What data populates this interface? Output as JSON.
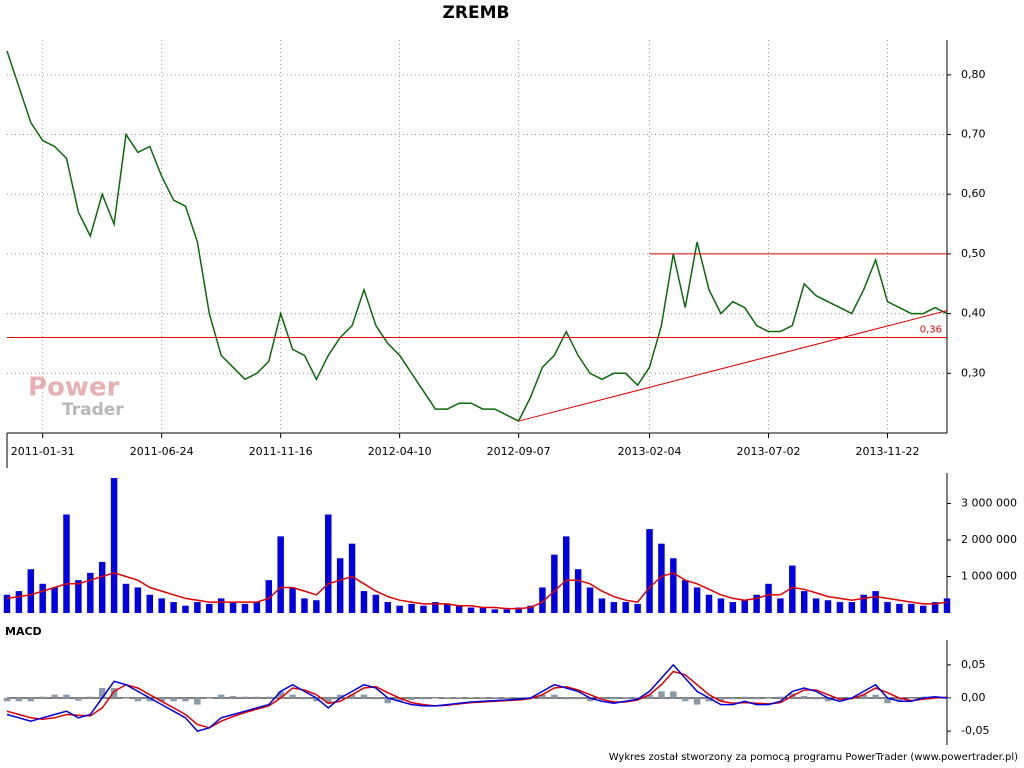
{
  "chart_data": [
    {
      "type": "line",
      "title": "ZREMB",
      "xlim": [
        0,
        79
      ],
      "xticks": [
        {
          "value": 3,
          "label": "2011-01-31"
        },
        {
          "value": 13,
          "label": "2011-06-24"
        },
        {
          "value": 23,
          "label": "2011-11-16"
        },
        {
          "value": 33,
          "label": "2012-04-10"
        },
        {
          "value": 43,
          "label": "2012-09-07"
        },
        {
          "value": 54,
          "label": "2013-02-04"
        },
        {
          "value": 64,
          "label": "2013-07-02"
        },
        {
          "value": 74,
          "label": "2013-11-22"
        }
      ],
      "ylim": [
        0.2,
        0.85
      ],
      "yticks": [
        {
          "value": 0.3,
          "label": "0,30"
        },
        {
          "value": 0.4,
          "label": "0,40"
        },
        {
          "value": 0.5,
          "label": "0,50"
        },
        {
          "value": 0.6,
          "label": "0,60"
        },
        {
          "value": 0.7,
          "label": "0,70"
        },
        {
          "value": 0.8,
          "label": "0,80"
        }
      ],
      "grid": true,
      "series": [
        {
          "color": "#0a6a0a",
          "values": [
            0.84,
            0.78,
            0.72,
            0.69,
            0.68,
            0.66,
            0.57,
            0.53,
            0.6,
            0.55,
            0.7,
            0.67,
            0.68,
            0.63,
            0.59,
            0.58,
            0.52,
            0.4,
            0.33,
            0.31,
            0.29,
            0.3,
            0.32,
            0.4,
            0.34,
            0.33,
            0.29,
            0.33,
            0.36,
            0.38,
            0.44,
            0.38,
            0.35,
            0.33,
            0.3,
            0.27,
            0.24,
            0.24,
            0.25,
            0.25,
            0.24,
            0.24,
            0.23,
            0.22,
            0.26,
            0.31,
            0.33,
            0.37,
            0.33,
            0.3,
            0.29,
            0.3,
            0.3,
            0.28,
            0.31,
            0.38,
            0.5,
            0.41,
            0.52,
            0.44,
            0.4,
            0.42,
            0.41,
            0.38,
            0.37,
            0.37,
            0.38,
            0.45,
            0.43,
            0.42,
            0.41,
            0.4,
            0.44,
            0.49,
            0.42,
            0.41,
            0.4,
            0.4,
            0.41,
            0.4
          ]
        }
      ],
      "reference_lines": [
        {
          "y": 0.5,
          "x_start": 54,
          "color": "#e00000"
        },
        {
          "y": 0.36,
          "color": "#e00000",
          "label": "0,36"
        }
      ],
      "trend_line": {
        "x": [
          43,
          79
        ],
        "y": [
          0.22,
          0.405
        ],
        "color": "#e00000"
      },
      "watermark": [
        "Power",
        "Trader"
      ]
    },
    {
      "type": "bar",
      "xlim": [
        0,
        79
      ],
      "ylim": [
        0,
        3700000
      ],
      "yticks": [
        {
          "value": 1000000,
          "label": "1 000 000"
        },
        {
          "value": 2000000,
          "label": "2 000 000"
        },
        {
          "value": 3000000,
          "label": "3 000 000"
        }
      ],
      "series": [
        {
          "style": "bar",
          "color": "#0000e0",
          "values": [
            500000,
            600000,
            1200000,
            800000,
            700000,
            2700000,
            900000,
            1100000,
            1400000,
            3700000,
            800000,
            700000,
            500000,
            400000,
            300000,
            200000,
            300000,
            250000,
            400000,
            300000,
            250000,
            300000,
            900000,
            2100000,
            700000,
            400000,
            350000,
            2700000,
            1500000,
            1900000,
            600000,
            500000,
            300000,
            200000,
            250000,
            200000,
            300000,
            250000,
            200000,
            150000,
            150000,
            100000,
            100000,
            150000,
            200000,
            700000,
            1600000,
            2100000,
            1200000,
            700000,
            400000,
            300000,
            300000,
            250000,
            2300000,
            1900000,
            1500000,
            900000,
            700000,
            500000,
            400000,
            300000,
            350000,
            500000,
            800000,
            400000,
            1300000,
            600000,
            400000,
            350000,
            300000,
            300000,
            500000,
            600000,
            300000,
            250000,
            250000,
            200000,
            300000,
            400000
          ]
        },
        {
          "style": "line",
          "color": "#e00000",
          "values": [
            400000,
            450000,
            500000,
            600000,
            700000,
            800000,
            800000,
            900000,
            1000000,
            1100000,
            1000000,
            900000,
            700000,
            600000,
            500000,
            400000,
            350000,
            300000,
            300000,
            300000,
            300000,
            300000,
            400000,
            700000,
            700000,
            600000,
            500000,
            800000,
            900000,
            1000000,
            800000,
            600000,
            450000,
            350000,
            300000,
            250000,
            250000,
            250000,
            200000,
            200000,
            150000,
            150000,
            120000,
            120000,
            150000,
            300000,
            600000,
            900000,
            900000,
            800000,
            600000,
            450000,
            350000,
            300000,
            700000,
            1000000,
            1100000,
            900000,
            800000,
            650000,
            500000,
            400000,
            350000,
            400000,
            500000,
            500000,
            700000,
            650000,
            550000,
            450000,
            400000,
            350000,
            400000,
            450000,
            400000,
            350000,
            300000,
            250000,
            250000,
            300000
          ]
        }
      ]
    },
    {
      "type": "macd",
      "title": "MACD",
      "xlim": [
        0,
        79
      ],
      "ylim": [
        -0.071,
        0.08
      ],
      "yticks": [
        {
          "value": -0.05,
          "label": "-0,05"
        },
        {
          "value": 0,
          "label": "0,00"
        },
        {
          "value": 0.05,
          "label": "0,05"
        }
      ],
      "series": [
        {
          "style": "bar",
          "color": "#8a9aa8",
          "values": [
            -0.005,
            -0.005,
            -0.005,
            0.002,
            0.005,
            0.005,
            -0.004,
            0.002,
            0.015,
            0.015,
            0,
            -0.005,
            -0.005,
            -0.005,
            -0.005,
            -0.005,
            -0.01,
            0,
            0.005,
            0.003,
            0.002,
            0.002,
            0.002,
            0.01,
            0.005,
            -0.002,
            -0.005,
            -0.007,
            0.005,
            0.005,
            0.005,
            -0.002,
            -0.008,
            -0.005,
            -0.003,
            -0.002,
            0,
            0.001,
            0.001,
            0.001,
            0.001,
            0.001,
            0.001,
            0.001,
            0.001,
            0.005,
            0.005,
            -0.002,
            -0.002,
            -0.005,
            -0.003,
            -0.002,
            0.001,
            0.001,
            0.005,
            0.01,
            0.01,
            -0.005,
            -0.01,
            -0.005,
            -0.005,
            -0.002,
            0.002,
            -0.002,
            -0.001,
            0.002,
            0.007,
            0.003,
            -0.002,
            -0.005,
            -0.003,
            0.001,
            0.005,
            0.005,
            -0.008,
            -0.005,
            -0.001,
            0.002,
            0.002,
            -0.001
          ]
        },
        {
          "style": "line",
          "color": "#e00000",
          "values": [
            -0.02,
            -0.025,
            -0.03,
            -0.032,
            -0.03,
            -0.025,
            -0.026,
            -0.027,
            -0.015,
            0.01,
            0.02,
            0.015,
            0.005,
            -0.005,
            -0.015,
            -0.025,
            -0.04,
            -0.045,
            -0.035,
            -0.028,
            -0.022,
            -0.017,
            -0.012,
            0,
            0.015,
            0.012,
            0.005,
            -0.008,
            -0.005,
            0.005,
            0.015,
            0.017,
            0.008,
            0,
            -0.007,
            -0.01,
            -0.012,
            -0.011,
            -0.009,
            -0.007,
            -0.006,
            -0.005,
            -0.004,
            -0.003,
            -0.001,
            0.005,
            0.015,
            0.017,
            0.012,
            0.005,
            -0.002,
            -0.006,
            -0.006,
            -0.003,
            0.005,
            0.02,
            0.04,
            0.035,
            0.02,
            0.005,
            -0.005,
            -0.008,
            -0.007,
            -0.008,
            -0.009,
            -0.007,
            0.003,
            0.012,
            0.012,
            0.005,
            -0.002,
            -0.001,
            0.005,
            0.015,
            0.008,
            0,
            -0.004,
            -0.002,
            0,
            0.001
          ]
        },
        {
          "style": "line",
          "color": "#0000e0",
          "values": [
            -0.025,
            -0.03,
            -0.035,
            -0.03,
            -0.025,
            -0.02,
            -0.03,
            -0.025,
            0,
            0.025,
            0.02,
            0.01,
            0,
            -0.01,
            -0.02,
            -0.03,
            -0.05,
            -0.045,
            -0.03,
            -0.025,
            -0.02,
            -0.015,
            -0.01,
            0.01,
            0.02,
            0.01,
            0,
            -0.015,
            0,
            0.01,
            0.02,
            0.015,
            0,
            -0.005,
            -0.01,
            -0.012,
            -0.012,
            -0.01,
            -0.008,
            -0.006,
            -0.005,
            -0.004,
            -0.003,
            -0.002,
            0,
            0.01,
            0.02,
            0.015,
            0.01,
            0,
            -0.005,
            -0.008,
            -0.005,
            -0.002,
            0.01,
            0.03,
            0.05,
            0.03,
            0.01,
            0,
            -0.01,
            -0.01,
            -0.005,
            -0.01,
            -0.01,
            -0.005,
            0.01,
            0.015,
            0.01,
            0,
            -0.005,
            0,
            0.01,
            0.02,
            0,
            -0.005,
            -0.005,
            0,
            0.002,
            0
          ]
        }
      ],
      "zero_line": true
    }
  ],
  "footer": "Wykres został stworzony za pomocą programu PowerTrader (www.powertrader.pl)"
}
